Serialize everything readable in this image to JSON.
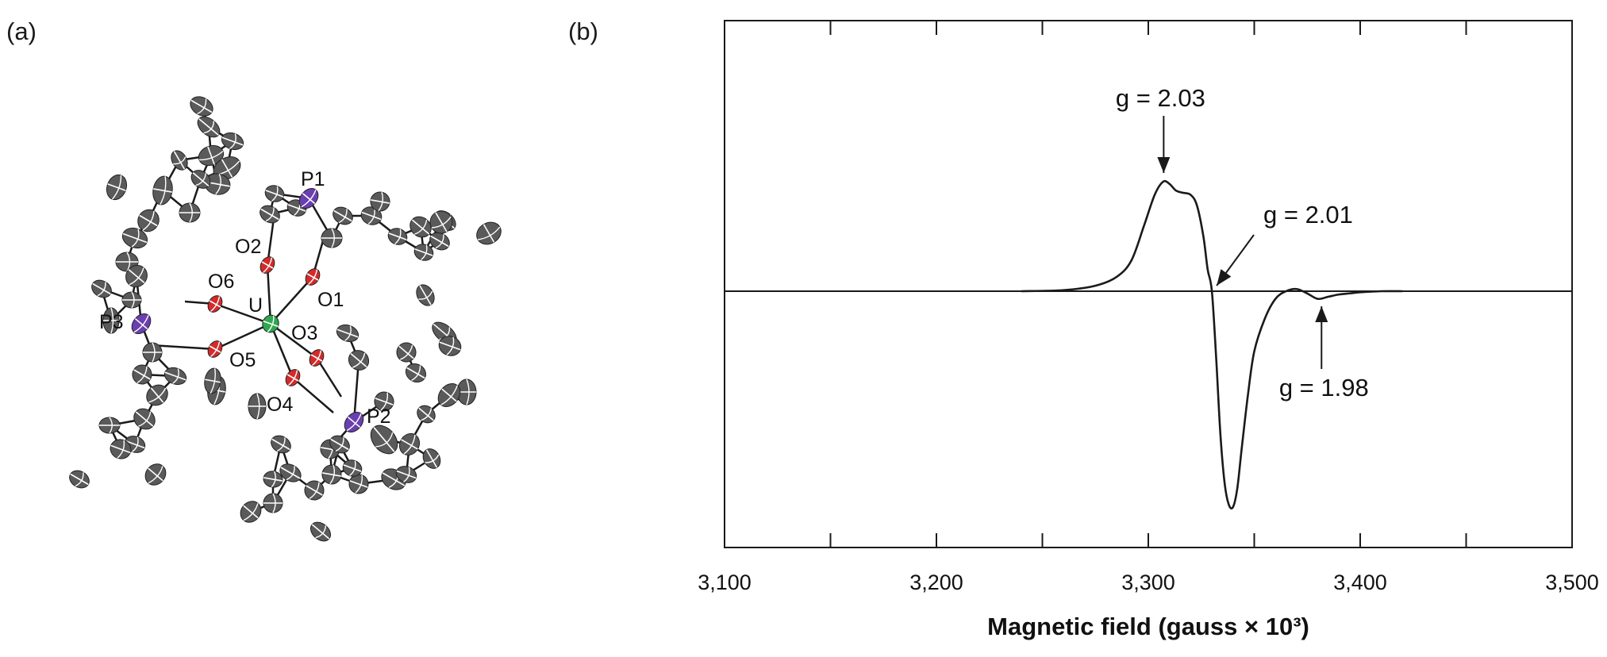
{
  "panels": {
    "a_label": "(a)",
    "b_label": "(b)"
  },
  "molecule": {
    "atom_labels": [
      "P1",
      "O2",
      "O6",
      "O1",
      "P3",
      "U",
      "O3",
      "O5",
      "O4",
      "P2"
    ],
    "colors": {
      "uranium": "#2fa84f",
      "oxygen": "#d42a2a",
      "phosphorus": "#6a3fb0",
      "carbon": "#5a5a5a"
    }
  },
  "chart_data": {
    "type": "line",
    "xlabel": "Magnetic field (gauss × 10³)",
    "ylabel": "",
    "xlim": [
      3100,
      3500
    ],
    "x_ticks": [
      3100,
      3200,
      3300,
      3400,
      3500
    ],
    "x_tick_labels": [
      "3,100",
      "3,200",
      "3,300",
      "3,400",
      "3,500"
    ],
    "y_ticks_shown": false,
    "grid": false,
    "series": [
      {
        "x": [
          3240,
          3260,
          3275,
          3285,
          3292,
          3298,
          3303,
          3307,
          3310,
          3313,
          3316,
          3320,
          3323,
          3326,
          3328,
          3330,
          3332,
          3334,
          3336,
          3338,
          3340,
          3342,
          3344,
          3347,
          3350,
          3355,
          3360,
          3365,
          3370,
          3375,
          3380,
          3385,
          3390,
          3395,
          3400,
          3410,
          3420
        ],
        "y": [
          0,
          0.01,
          0.05,
          0.13,
          0.28,
          0.6,
          0.88,
          1.0,
          0.98,
          0.92,
          0.9,
          0.88,
          0.78,
          0.5,
          0.2,
          0,
          -0.6,
          -1.3,
          -1.75,
          -1.95,
          -1.97,
          -1.8,
          -1.45,
          -0.95,
          -0.55,
          -0.25,
          -0.07,
          0,
          0.02,
          -0.02,
          -0.07,
          -0.05,
          -0.03,
          -0.02,
          -0.01,
          0,
          0
        ]
      }
    ],
    "annotations": [
      {
        "text": "g = 2.03",
        "x": 3308,
        "arrow": "down"
      },
      {
        "text": "g = 2.01",
        "x": 3330,
        "arrow": "down-left"
      },
      {
        "text": "g = 1.98",
        "x": 3381,
        "arrow": "up"
      }
    ],
    "colors": {
      "line": "#1a1a1a",
      "axis": "#1a1a1a"
    }
  }
}
